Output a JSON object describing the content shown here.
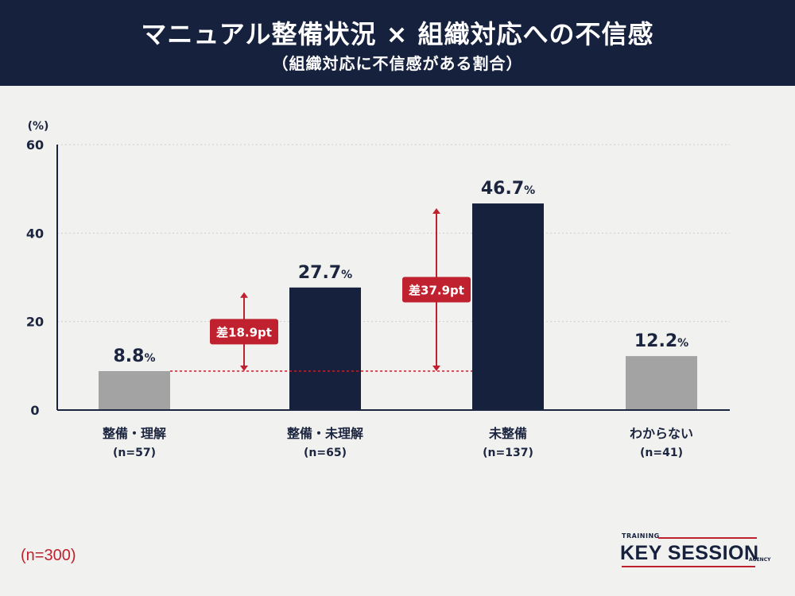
{
  "header": {
    "title": "マニュアル整備状況 × 組織対応への不信感",
    "subtitle": "（組織対応に不信感がある割合）"
  },
  "chart_data": {
    "type": "bar",
    "categories": [
      "整備・理解",
      "整備・未理解",
      "未整備",
      "わからない"
    ],
    "sample_sizes": [
      "(n=57)",
      "(n=65)",
      "(n=137)",
      "(n=41)"
    ],
    "values": [
      8.8,
      27.7,
      46.7,
      12.2
    ],
    "value_labels": [
      "8.8",
      "27.7",
      "46.7",
      "12.2"
    ],
    "value_unit": "%",
    "highlighted": [
      false,
      true,
      true,
      false
    ],
    "ylabel": "(%)",
    "ylim": [
      0,
      60
    ],
    "yticks": [
      0,
      20,
      40,
      60
    ],
    "grid": true,
    "reference_line_value": 8.8,
    "annotations": [
      {
        "category_index": 1,
        "label": "差18.9pt",
        "from": 8.8,
        "to": 27.7
      },
      {
        "category_index": 2,
        "label": "差37.9pt",
        "from": 8.8,
        "to": 46.7
      }
    ],
    "colors": {
      "highlight": "#16213e",
      "muted": "#a3a3a3",
      "accent": "#c0212e",
      "axis": "#1c2540"
    }
  },
  "footnote": "(n=300)",
  "logo": {
    "top_text": "TRAINING",
    "main_text": "KEY SESSION",
    "bottom_text": "AGENCY"
  }
}
